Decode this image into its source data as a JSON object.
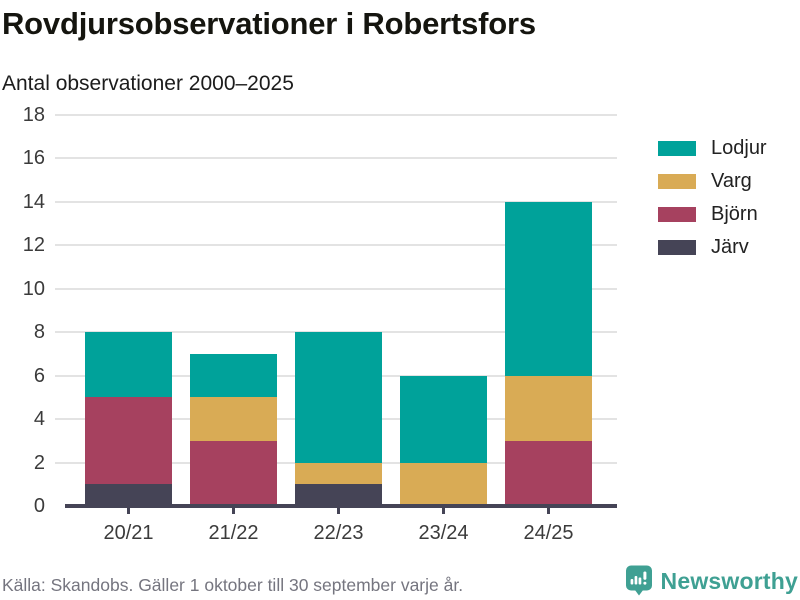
{
  "header": {
    "title": "Rovdjursobservationer i Robertsfors",
    "subtitle": "Antal observationer 2000–2025"
  },
  "footer": {
    "source": "Källa: Skandobs. Gäller 1 oktober till 30 september varje år.",
    "brand": "Newsworthy"
  },
  "chart_data": {
    "type": "bar",
    "stacked": true,
    "title": "Rovdjursobservationer i Robertsfors",
    "subtitle": "Antal observationer 2000–2025",
    "categories": [
      "20/21",
      "21/22",
      "22/23",
      "23/24",
      "24/25"
    ],
    "series": [
      {
        "name": "Lodjur",
        "color": "#00a29a",
        "values": [
          3,
          2,
          6,
          4,
          8
        ]
      },
      {
        "name": "Varg",
        "color": "#d9ab55",
        "values": [
          0,
          2,
          1,
          2,
          3
        ]
      },
      {
        "name": "Björn",
        "color": "#a6415f",
        "values": [
          4,
          3,
          0,
          0,
          3
        ]
      },
      {
        "name": "Järv",
        "color": "#454456",
        "values": [
          1,
          0,
          1,
          0,
          0
        ]
      }
    ],
    "stack_order_bottom_to_top": [
      "Järv",
      "Björn",
      "Varg",
      "Lodjur"
    ],
    "xlabel": "",
    "ylabel": "",
    "ylim": [
      0,
      18
    ],
    "ytick_step": 2,
    "grid": true,
    "legend_position": "right",
    "colors": {
      "axis": "#454456",
      "gridline": "#e3e3e3",
      "tick_label": "#3b3b3b",
      "brand_teal": "#3fa093"
    }
  }
}
